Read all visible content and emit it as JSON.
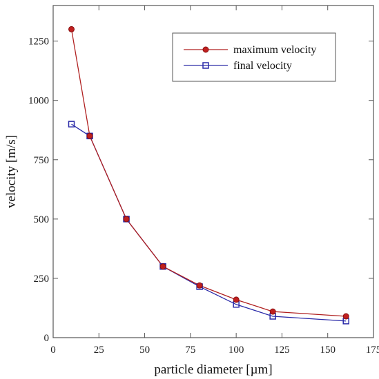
{
  "chart_data": {
    "type": "line",
    "xlabel": "particle diameter [µm]",
    "ylabel": "velocity [m/s]",
    "xlim": [
      0,
      175
    ],
    "ylim": [
      0,
      1400
    ],
    "xticks": [
      0,
      25,
      50,
      75,
      100,
      125,
      150,
      175
    ],
    "yticks": [
      0,
      250,
      500,
      750,
      1000,
      1250
    ],
    "grid": false,
    "legend_position": "top-right",
    "series": [
      {
        "name": "maximum velocity",
        "color": "#b02020",
        "marker": "circle",
        "x": [
          10,
          20,
          40,
          60,
          80,
          100,
          120,
          160
        ],
        "y": [
          1300,
          850,
          500,
          300,
          220,
          160,
          110,
          90
        ]
      },
      {
        "name": "final velocity",
        "color": "#2a2aa8",
        "marker": "square",
        "x": [
          10,
          20,
          40,
          60,
          80,
          100,
          120,
          160
        ],
        "y": [
          900,
          850,
          500,
          300,
          215,
          140,
          90,
          70
        ]
      }
    ]
  }
}
